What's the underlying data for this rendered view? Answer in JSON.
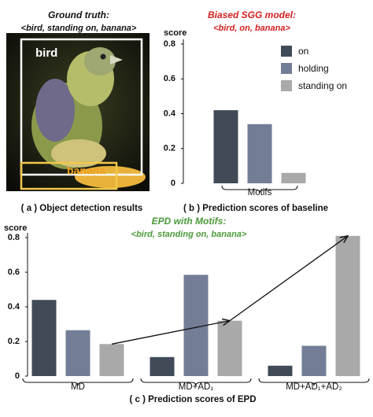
{
  "figure": {
    "title": "Ground truth:",
    "subtitle": "<bird, standing on, banana>",
    "boxes": [
      "bird",
      "banana"
    ]
  },
  "captions": [
    "( a ) Object detection results",
    "( b ) Prediction scores of baseline",
    "( c ) Prediction scores of EPD"
  ],
  "chart_data": [
    {
      "type": "bar",
      "title": "Biased SGG model:",
      "subtitle": "<bird, on, banana>",
      "y_label": "score",
      "categories": [
        "Motifs"
      ],
      "series": [
        {
          "name": "on",
          "color": "#414b58",
          "values": [
            0.42
          ]
        },
        {
          "name": "holding",
          "color": "#737d96",
          "values": [
            0.34
          ]
        },
        {
          "name": "standing on",
          "color": "#a9a9a9",
          "values": [
            0.06
          ]
        }
      ],
      "ylim": [
        0,
        0.8
      ],
      "yticks": [
        0,
        0.2,
        0.4,
        0.6,
        0.8
      ],
      "legend": "top-right"
    },
    {
      "type": "bar",
      "title": "EPD with Motifs:",
      "subtitle": "<bird, standing on, banana>",
      "y_label": "score",
      "categories": [
        "MD",
        "MD+AD₁",
        "MD+AD₁+AD₂"
      ],
      "series": [
        {
          "color": "#414b58",
          "values": [
            0.44,
            0.11,
            0.06
          ]
        },
        {
          "color": "#737d96",
          "values": [
            0.265,
            0.585,
            0.175
          ]
        },
        {
          "color": "#a9a9a9",
          "values": [
            0.185,
            0.32,
            0.81
          ]
        }
      ],
      "ylim": [
        0,
        0.8
      ],
      "yticks": [
        0,
        0.2,
        0.4,
        0.6,
        0.8
      ],
      "arrows": true
    }
  ]
}
